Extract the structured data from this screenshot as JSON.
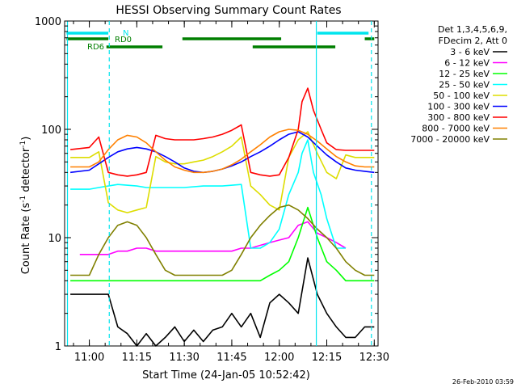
{
  "chart_data": {
    "type": "line",
    "title": "HESSI Observing Summary Count Rates",
    "xlabel": "Start Time (24-Jan-05 10:52:42)",
    "ylabel_main": "Count Rate (s",
    "ylabel_sup1": "-1",
    "ylabel_mid": " detector",
    "ylabel_sup2": "-1",
    "ylabel_end": ")",
    "yscale": "log",
    "ylim": [
      1,
      1000
    ],
    "xlim": [
      10.87,
      12.52
    ],
    "x_ticks": [
      {
        "v": 11.0,
        "label": "11:00"
      },
      {
        "v": 11.25,
        "label": "11:15"
      },
      {
        "v": 11.5,
        "label": "11:30"
      },
      {
        "v": 11.75,
        "label": "11:45"
      },
      {
        "v": 12.0,
        "label": "12:00"
      },
      {
        "v": 12.25,
        "label": "12:15"
      },
      {
        "v": 12.5,
        "label": "12:30"
      }
    ],
    "y_ticks": [
      {
        "v": 1,
        "label": "1"
      },
      {
        "v": 10,
        "label": "10"
      },
      {
        "v": 100,
        "label": "100"
      },
      {
        "v": 1000,
        "label": "1000"
      }
    ],
    "legend_header": [
      "Det 1,3,4,5,6,9,",
      "FDecim 2, Att 0"
    ],
    "legend_position": "right",
    "series": [
      {
        "name": "3 - 6 keV",
        "color": "#000000",
        "x": [
          10.9,
          11.0,
          11.1,
          11.15,
          11.2,
          11.25,
          11.3,
          11.35,
          11.4,
          11.45,
          11.5,
          11.55,
          11.6,
          11.65,
          11.7,
          11.75,
          11.8,
          11.85,
          11.9,
          11.95,
          12.0,
          12.05,
          12.1,
          12.15,
          12.2,
          12.25,
          12.3,
          12.35,
          12.4,
          12.45,
          12.5
        ],
        "y": [
          3,
          3,
          3,
          1.5,
          1.3,
          1,
          1.3,
          1,
          1.2,
          1.5,
          1.1,
          1.4,
          1.1,
          1.4,
          1.5,
          2,
          1.5,
          2,
          1.2,
          2.5,
          3,
          2.5,
          2,
          6.5,
          3,
          2,
          1.5,
          1.2,
          1.2,
          1.5,
          1.5
        ]
      },
      {
        "name": "6 - 12 keV",
        "color": "#ff00ff",
        "x": [
          10.95,
          11.0,
          11.05,
          11.1,
          11.15,
          11.2,
          11.25,
          11.3,
          11.35,
          11.4,
          11.45,
          11.5,
          11.55,
          11.6,
          11.65,
          11.7,
          11.75,
          11.8,
          11.85,
          11.9,
          11.95,
          12.0,
          12.05,
          12.1,
          12.15,
          12.2,
          12.25,
          12.3,
          12.35
        ],
        "y": [
          7,
          7,
          7,
          7,
          7.5,
          7.5,
          8,
          8,
          7.5,
          7.5,
          7.5,
          7.5,
          7.5,
          7.5,
          7.5,
          7.5,
          7.5,
          8,
          8,
          8.5,
          9,
          9.5,
          10,
          13,
          14,
          11,
          10,
          9,
          8
        ]
      },
      {
        "name": "12 - 25 keV",
        "color": "#00ff00",
        "x": [
          10.9,
          10.95,
          11.0,
          11.05,
          11.1,
          11.15,
          11.2,
          11.25,
          11.3,
          11.35,
          11.4,
          11.45,
          11.5,
          11.55,
          11.6,
          11.65,
          11.7,
          11.75,
          11.8,
          11.85,
          11.9,
          11.95,
          12.0,
          12.05,
          12.1,
          12.15,
          12.2,
          12.25,
          12.3,
          12.35,
          12.4,
          12.45,
          12.5
        ],
        "y": [
          4,
          4,
          4,
          4,
          4,
          4,
          4,
          4,
          4,
          4,
          4,
          4,
          4,
          4,
          4,
          4,
          4,
          4,
          4,
          4,
          4,
          4.5,
          5,
          6,
          10,
          19,
          10,
          6,
          5,
          4,
          4,
          4,
          4
        ]
      },
      {
        "name": "25 - 50 keV",
        "color": "#00ffff",
        "x": [
          10.9,
          11.0,
          11.05,
          11.15,
          11.25,
          11.3,
          11.4,
          11.5,
          11.6,
          11.7,
          11.8,
          11.85,
          11.9,
          11.95,
          12.0,
          12.05,
          12.1,
          12.12,
          12.15,
          12.18,
          12.22,
          12.25,
          12.3,
          12.35
        ],
        "y": [
          28,
          28,
          29,
          31,
          30,
          29,
          29,
          29,
          30,
          30,
          31,
          8,
          8,
          9,
          12,
          25,
          40,
          60,
          80,
          40,
          25,
          15,
          8,
          8
        ]
      },
      {
        "name": "50 - 100 keV",
        "color": "#dddd00",
        "x": [
          10.9,
          11.0,
          11.05,
          11.1,
          11.15,
          11.2,
          11.25,
          11.3,
          11.35,
          11.4,
          11.45,
          11.5,
          11.55,
          11.6,
          11.65,
          11.7,
          11.75,
          11.8,
          11.85,
          11.9,
          11.95,
          12.0,
          12.05,
          12.1,
          12.15,
          12.2,
          12.25,
          12.3,
          12.35,
          12.4,
          12.45,
          12.5
        ],
        "y": [
          55,
          55,
          62,
          21,
          18,
          17,
          18,
          19,
          56,
          50,
          48,
          48,
          50,
          52,
          56,
          62,
          70,
          85,
          30,
          25,
          20,
          18,
          55,
          80,
          95,
          60,
          40,
          35,
          58,
          55,
          55,
          55
        ]
      },
      {
        "name": "100 - 300 keV",
        "color": "#0000ff",
        "x": [
          10.9,
          11.0,
          11.05,
          11.1,
          11.15,
          11.2,
          11.25,
          11.3,
          11.35,
          11.4,
          11.45,
          11.5,
          11.55,
          11.6,
          11.65,
          11.7,
          11.75,
          11.8,
          11.85,
          11.9,
          11.95,
          12.0,
          12.05,
          12.1,
          12.15,
          12.2,
          12.25,
          12.3,
          12.35,
          12.4,
          12.45,
          12.5
        ],
        "y": [
          40,
          42,
          48,
          55,
          62,
          66,
          68,
          66,
          62,
          56,
          50,
          44,
          41,
          40,
          41,
          43,
          46,
          50,
          56,
          62,
          70,
          80,
          90,
          95,
          85,
          70,
          58,
          50,
          44,
          42,
          41,
          40
        ]
      },
      {
        "name": "300 - 800 keV",
        "color": "#ff0000",
        "x": [
          10.9,
          11.0,
          11.05,
          11.1,
          11.15,
          11.2,
          11.25,
          11.3,
          11.35,
          11.4,
          11.45,
          11.5,
          11.55,
          11.6,
          11.65,
          11.7,
          11.75,
          11.8,
          11.85,
          11.9,
          11.95,
          12.0,
          12.05,
          12.1,
          12.12,
          12.15,
          12.18,
          12.22,
          12.25,
          12.3,
          12.35,
          12.4,
          12.45,
          12.5
        ],
        "y": [
          65,
          68,
          85,
          40,
          38,
          37,
          38,
          40,
          88,
          82,
          80,
          80,
          80,
          82,
          85,
          90,
          98,
          110,
          40,
          38,
          37,
          38,
          55,
          100,
          180,
          240,
          150,
          100,
          75,
          65,
          64,
          64,
          64,
          64
        ]
      },
      {
        "name": "800 - 7000 keV",
        "color": "#ff8000",
        "x": [
          10.9,
          11.0,
          11.05,
          11.1,
          11.15,
          11.2,
          11.25,
          11.3,
          11.35,
          11.4,
          11.45,
          11.5,
          11.55,
          11.6,
          11.65,
          11.7,
          11.75,
          11.8,
          11.85,
          11.9,
          11.95,
          12.0,
          12.05,
          12.1,
          12.15,
          12.2,
          12.25,
          12.3,
          12.35,
          12.4,
          12.45,
          12.5
        ],
        "y": [
          45,
          45,
          50,
          65,
          80,
          88,
          85,
          75,
          62,
          52,
          45,
          42,
          40,
          40,
          41,
          43,
          47,
          53,
          62,
          72,
          85,
          95,
          100,
          98,
          90,
          78,
          66,
          56,
          50,
          46,
          45,
          45
        ]
      },
      {
        "name": "7000 - 20000 keV",
        "color": "#808000",
        "x": [
          10.9,
          11.0,
          11.05,
          11.1,
          11.15,
          11.2,
          11.25,
          11.3,
          11.35,
          11.4,
          11.45,
          11.5,
          11.55,
          11.6,
          11.65,
          11.7,
          11.75,
          11.8,
          11.85,
          11.9,
          11.95,
          12.0,
          12.05,
          12.1,
          12.15,
          12.2,
          12.25,
          12.3,
          12.35,
          12.4,
          12.45,
          12.5
        ],
        "y": [
          4.5,
          4.5,
          7,
          10,
          13,
          14,
          13,
          10,
          7,
          5,
          4.5,
          4.5,
          4.5,
          4.5,
          4.5,
          4.5,
          5,
          7,
          10,
          13,
          16,
          19,
          20,
          18,
          15,
          12,
          10,
          8,
          6,
          5,
          4.5,
          4.5
        ]
      }
    ],
    "vlines": [
      {
        "x": 10.885,
        "style": "solid"
      },
      {
        "x": 11.105,
        "style": "dashed"
      },
      {
        "x": 12.195,
        "style": "solid"
      },
      {
        "x": 12.485,
        "style": "dashed"
      }
    ],
    "flags": [
      {
        "label": "N",
        "color": "#00e5ee",
        "row": 1,
        "segments": [
          [
            10.88,
            11.1
          ],
          [
            12.2,
            12.47
          ]
        ]
      },
      {
        "label": "RD0",
        "color": "#007f00",
        "row": 2,
        "segments": [
          [
            10.88,
            11.1
          ],
          [
            11.49,
            12.01
          ],
          [
            12.45,
            12.5
          ]
        ]
      },
      {
        "label": "RD6",
        "color": "#007f00",
        "row": 3,
        "segments": [
          [
            11.09,
            11.385
          ],
          [
            11.86,
            12.295
          ]
        ]
      }
    ]
  },
  "footer": {
    "timestamp": "26-Feb-2010 03:59"
  }
}
